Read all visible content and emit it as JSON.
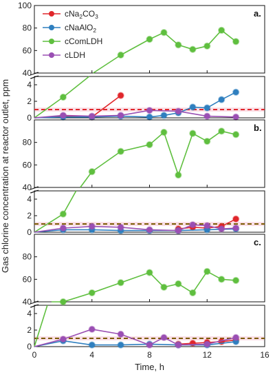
{
  "chart_data": {
    "type": "line",
    "xlabel": "Time, h",
    "ylabel": "Gas chlorine concentration at reactor outlet, ppm",
    "xlim": [
      0,
      16
    ],
    "xticks": [
      "0",
      "4",
      "8",
      "12",
      "16"
    ],
    "xtick_values": [
      0,
      4,
      8,
      12,
      16
    ],
    "legend": [
      {
        "base": "cNa",
        "sub1": "2",
        "mid": "CO",
        "sub2": "3",
        "color": "#e0262b"
      },
      {
        "base": "cNaAlO",
        "sub1": "2",
        "mid": "",
        "sub2": "",
        "color": "#2f7fbf"
      },
      {
        "base": "cComLDH",
        "sub1": "",
        "mid": "",
        "sub2": "",
        "color": "#5fbf3f"
      },
      {
        "base": "cLDH",
        "sub1": "",
        "mid": "",
        "sub2": "",
        "color": "#9a4fb3"
      }
    ],
    "panels": [
      {
        "label": "a.",
        "upper": {
          "ylim": [
            40,
            100
          ],
          "yticks": [
            "40",
            "60",
            "80",
            "100"
          ],
          "ytick_values": [
            40,
            60,
            80,
            100
          ]
        },
        "lower": {
          "ylim": [
            0,
            5
          ],
          "yticks": [
            "0",
            "2",
            "4"
          ],
          "ytick_values": [
            0,
            2,
            4
          ]
        },
        "threshold": {
          "value": 1,
          "color": "#e0262b"
        },
        "series": [
          {
            "name": "cNa2CO3",
            "color": "#e0262b",
            "x": [
              0,
              2,
              4,
              6
            ],
            "y": [
              0,
              0.2,
              0.1,
              2.7
            ]
          },
          {
            "name": "cNaAlO2",
            "color": "#2f7fbf",
            "x": [
              0,
              2,
              4,
              6,
              8,
              9,
              10,
              11,
              12,
              13,
              14
            ],
            "y": [
              0,
              0.1,
              0.1,
              0.2,
              0.1,
              0.3,
              0.6,
              1.3,
              1.2,
              2.2,
              3.1
            ]
          },
          {
            "name": "cComLDH",
            "color": "#5fbf3f",
            "x": [
              0,
              2,
              6,
              8,
              9,
              10,
              11,
              12,
              13,
              14
            ],
            "y": [
              0,
              2.5,
              56,
              70,
              76,
              65,
              61,
              64,
              78,
              68
            ],
            "break_after_x": 2
          },
          {
            "name": "cLDH",
            "color": "#9a4fb3",
            "x": [
              0,
              2,
              4,
              6,
              8,
              10,
              12,
              14
            ],
            "y": [
              0,
              0.3,
              0.2,
              0.3,
              0.9,
              0.8,
              0.2,
              0.1
            ]
          }
        ]
      },
      {
        "label": "b.",
        "upper": {
          "ylim": [
            40,
            100
          ],
          "yticks": [
            "40",
            "60",
            "80"
          ],
          "ytick_values": [
            40,
            60,
            80
          ]
        },
        "lower": {
          "ylim": [
            0,
            5
          ],
          "yticks": [
            "0",
            "2",
            "4"
          ],
          "ytick_values": [
            0,
            2,
            4
          ]
        },
        "threshold": {
          "value": 1,
          "color": "#7a5a00"
        },
        "series": [
          {
            "name": "cNa2CO3",
            "color": "#e0262b",
            "x": [
              10,
              11,
              12,
              13,
              14
            ],
            "y": [
              0.4,
              0.6,
              0.5,
              0.7,
              1.6
            ]
          },
          {
            "name": "cNaAlO2",
            "color": "#2f7fbf",
            "x": [
              0,
              2,
              4,
              6,
              8,
              10,
              12,
              14
            ],
            "y": [
              0,
              0.3,
              0.3,
              0.2,
              0.2,
              0.2,
              0.3,
              0.4
            ]
          },
          {
            "name": "cComLDH",
            "color": "#5fbf3f",
            "x": [
              0,
              2,
              4,
              6,
              8,
              9,
              10,
              11,
              12,
              13,
              14
            ],
            "y": [
              0,
              2.2,
              54,
              72,
              78,
              89,
              51,
              88,
              81,
              90,
              87
            ],
            "break_after_x": 2
          },
          {
            "name": "cLDH",
            "color": "#9a4fb3",
            "x": [
              0,
              2,
              4,
              6,
              8,
              10,
              11,
              12,
              13,
              14
            ],
            "y": [
              0,
              0.5,
              0.7,
              0.6,
              0.3,
              0.2,
              0.9,
              0.8,
              0.4,
              0.5
            ]
          }
        ]
      },
      {
        "label": "c.",
        "upper": {
          "ylim": [
            40,
            100
          ],
          "yticks": [
            "40",
            "60",
            "80"
          ],
          "ytick_values": [
            40,
            60,
            80
          ]
        },
        "lower": {
          "ylim": [
            0,
            5
          ],
          "yticks": [
            "0",
            "2",
            "4"
          ],
          "ytick_values": [
            0,
            2,
            4
          ]
        },
        "threshold": {
          "value": 1,
          "color": "#7a5a00"
        },
        "series": [
          {
            "name": "cNa2CO3",
            "color": "#e0262b",
            "x": [
              10,
              11,
              12,
              13,
              14
            ],
            "y": [
              0.3,
              0.4,
              0.5,
              0.6,
              0.8
            ]
          },
          {
            "name": "cNaAlO2",
            "color": "#2f7fbf",
            "x": [
              0,
              2,
              4,
              6,
              8,
              10,
              12,
              14
            ],
            "y": [
              0,
              0.7,
              0.2,
              0.2,
              0.3,
              0.2,
              0.2,
              0.6
            ]
          },
          {
            "name": "cComLDH",
            "color": "#5fbf3f",
            "x": [
              0,
              2,
              4,
              6,
              8,
              9,
              10,
              11,
              12,
              13,
              14
            ],
            "y": [
              0,
              40,
              48,
              57,
              66,
              53,
              56,
              48,
              67,
              60,
              59
            ],
            "break_after_x": 0
          },
          {
            "name": "cLDH",
            "color": "#9a4fb3",
            "x": [
              0,
              2,
              4,
              6,
              8,
              9,
              10,
              12,
              14
            ],
            "y": [
              0,
              0.9,
              2.1,
              1.5,
              0.2,
              1.1,
              0.2,
              0.3,
              1.1
            ]
          }
        ]
      }
    ]
  }
}
